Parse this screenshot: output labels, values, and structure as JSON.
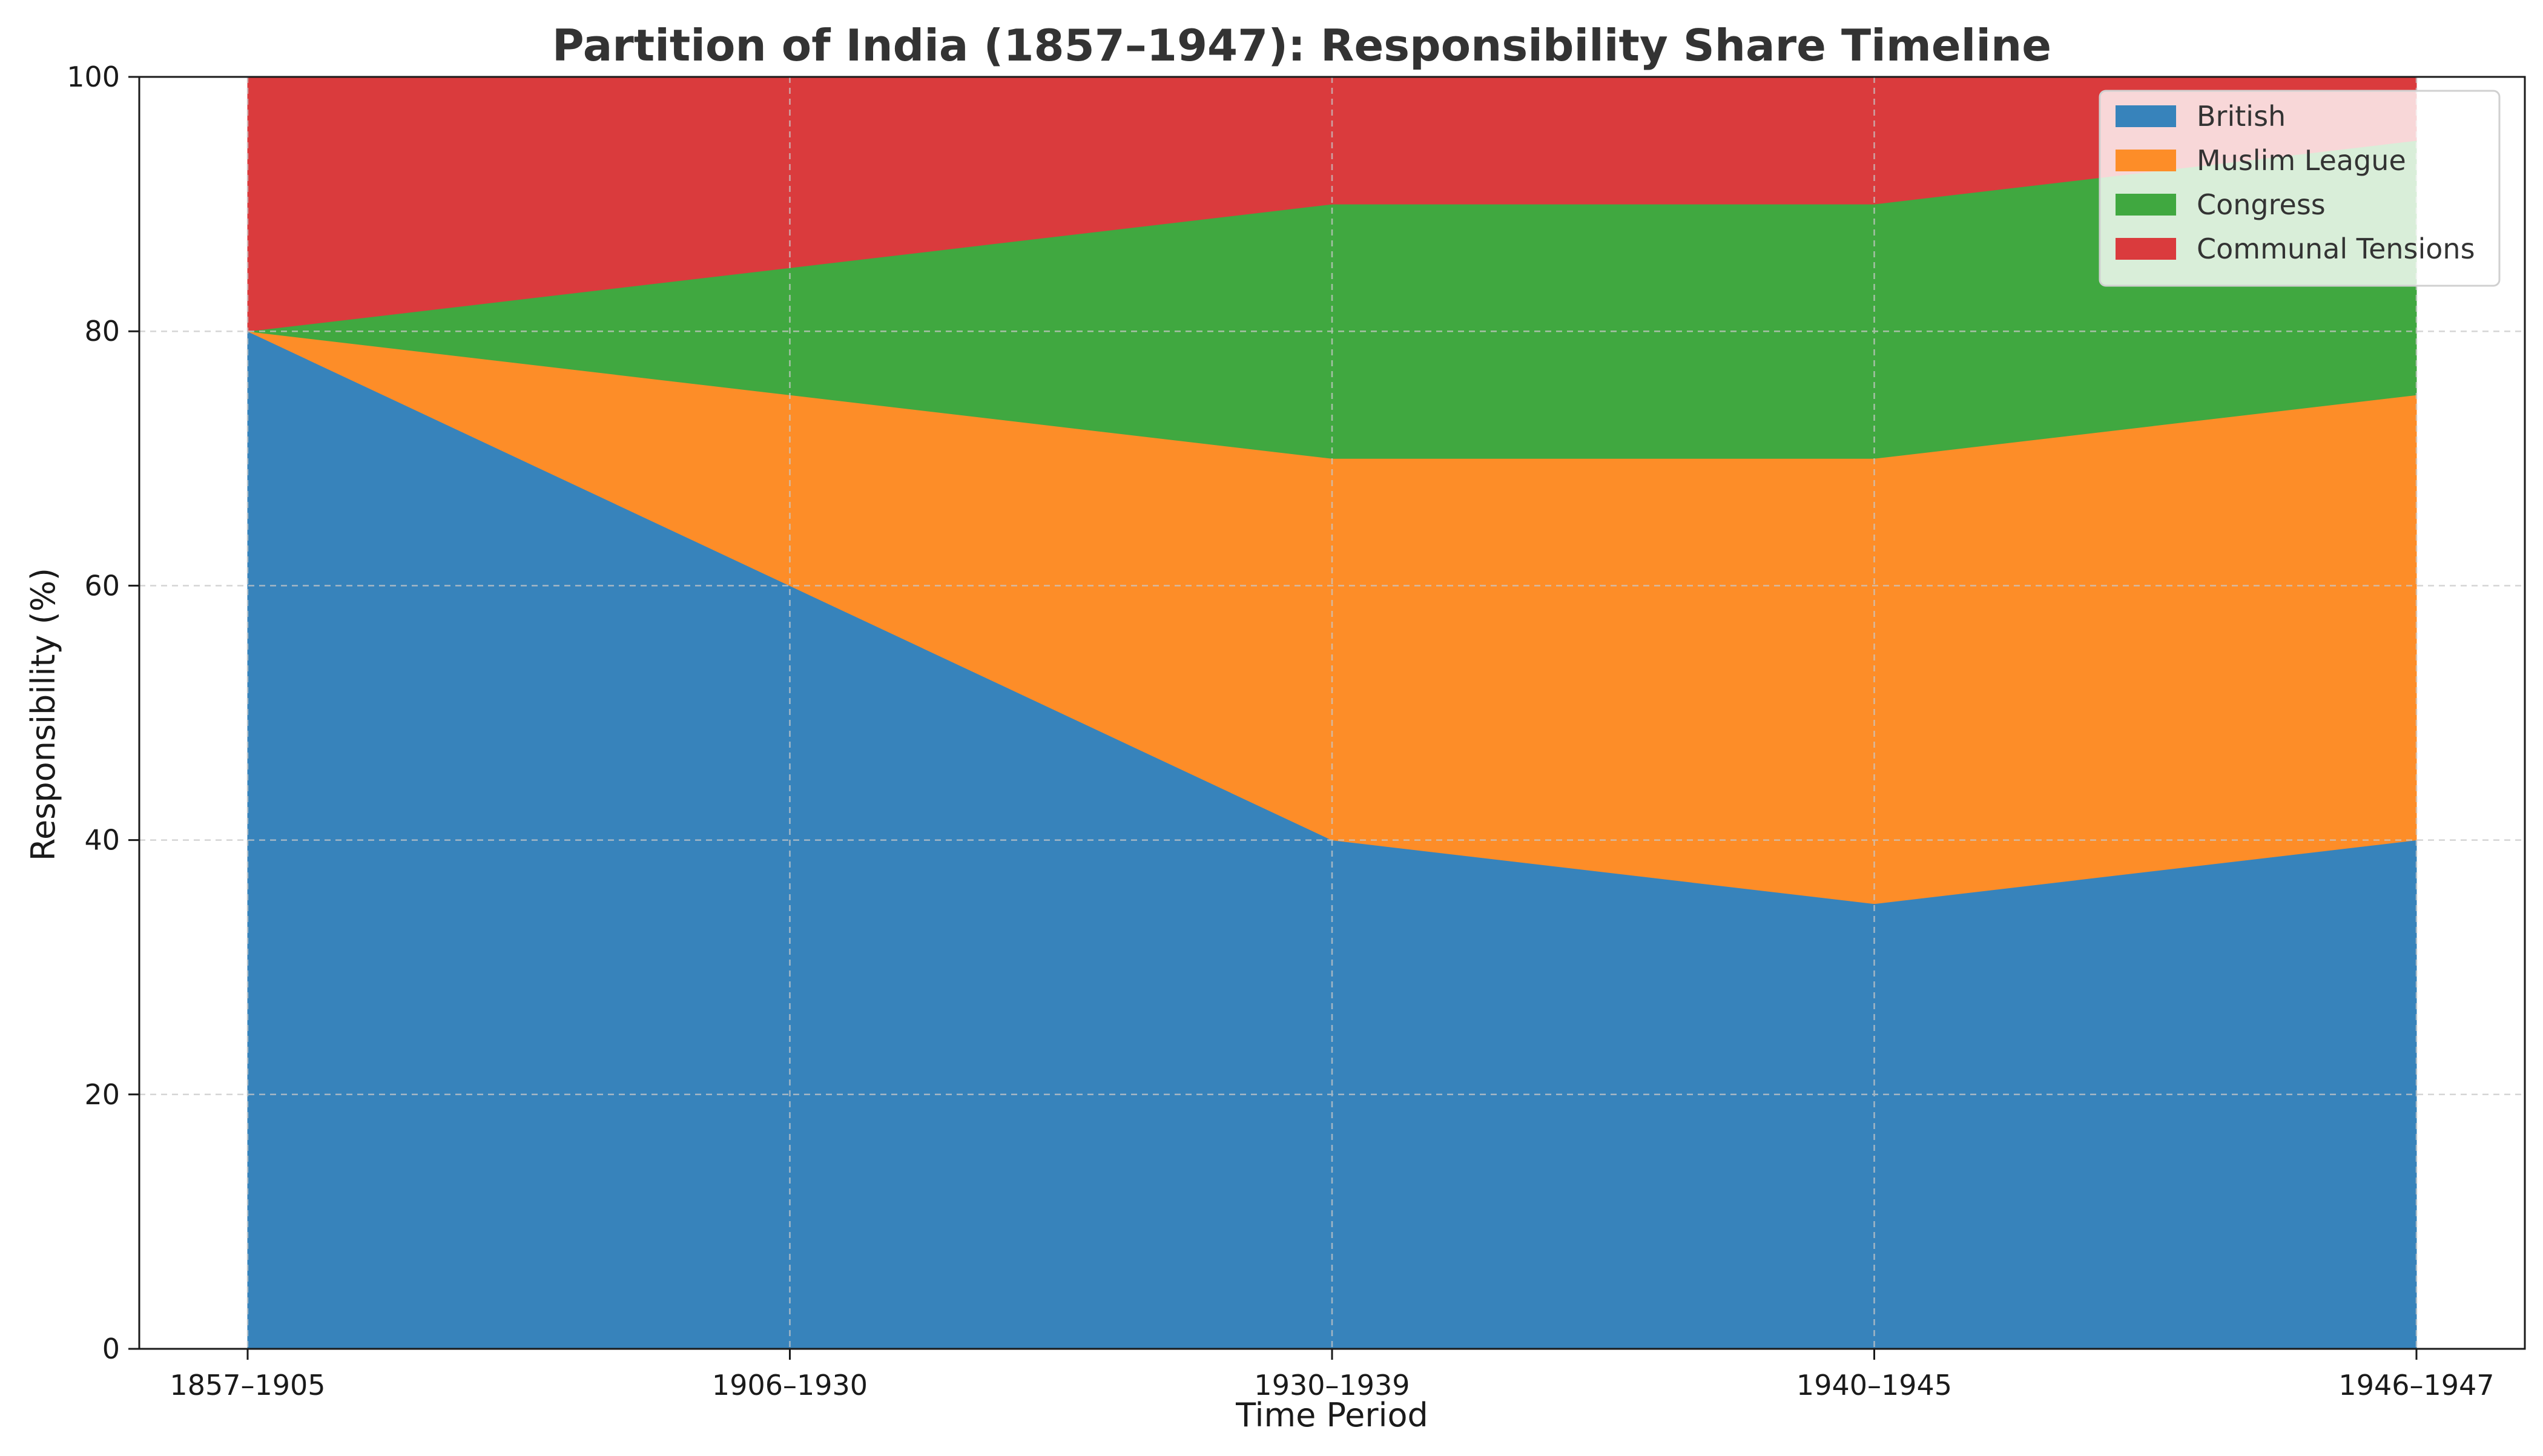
{
  "chart_data": {
    "type": "area",
    "stacked": true,
    "title": "Partition of India (1857–1947): Responsibility Share Timeline",
    "xlabel": "Time Period",
    "ylabel": "Responsibility (%)",
    "categories": [
      "1857–1905",
      "1906–1930",
      "1930–1939",
      "1940–1945",
      "1946–1947"
    ],
    "ylim": [
      0,
      100
    ],
    "yticks": [
      "0",
      "20",
      "40",
      "60",
      "80",
      "100"
    ],
    "grid": true,
    "legend_position": "top-right",
    "series": [
      {
        "name": "British",
        "values": [
          80,
          60,
          40,
          35,
          40
        ],
        "color": "#3783bb"
      },
      {
        "name": "Muslim League",
        "values": [
          0,
          15,
          30,
          35,
          35
        ],
        "color": "#fd8d28"
      },
      {
        "name": "Congress",
        "values": [
          0,
          10,
          20,
          20,
          20
        ],
        "color": "#40a840"
      },
      {
        "name": "Communal Tensions",
        "values": [
          20,
          15,
          10,
          10,
          5
        ],
        "color": "#da3b3d"
      }
    ]
  }
}
